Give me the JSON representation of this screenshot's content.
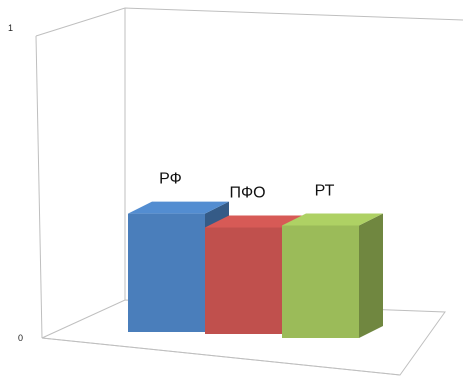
{
  "chart_data": {
    "type": "bar",
    "style": "3d-column",
    "categories": [
      "РФ",
      "ПФО",
      "РТ"
    ],
    "values": [
      0.4,
      0.36,
      0.38
    ],
    "colors": [
      "#4a7ebb",
      "#c0504d",
      "#9bbb59"
    ],
    "ylim": [
      0,
      1
    ],
    "yticks": [
      "0",
      "1"
    ],
    "grid": false,
    "legend": "none"
  }
}
